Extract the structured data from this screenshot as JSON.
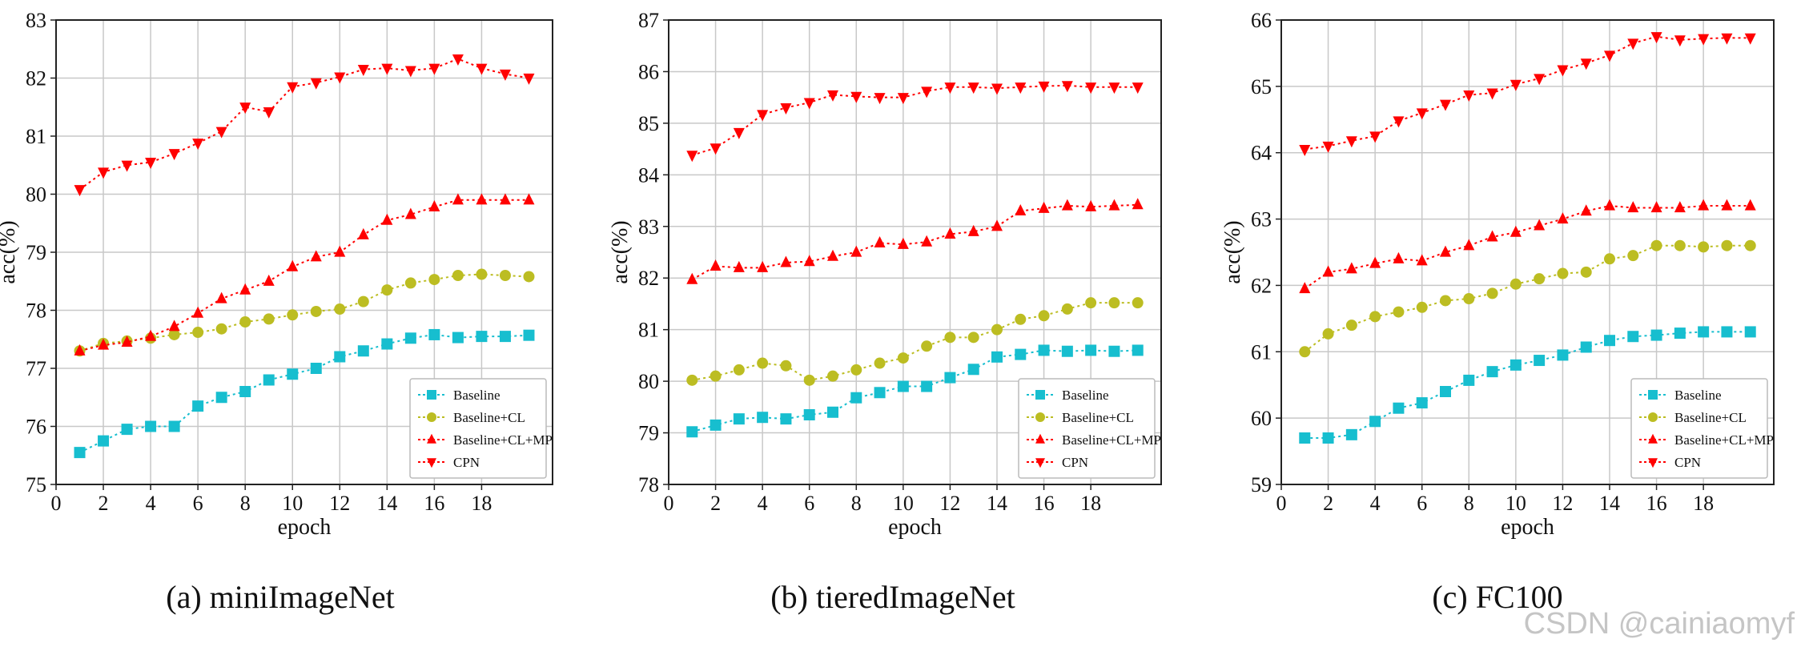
{
  "watermark": "CSDN @cainiaomyf",
  "chart_data": [
    {
      "type": "line",
      "caption": "(a) miniImageNet",
      "xlabel": "epoch",
      "ylabel": "acc(%)",
      "xlim": [
        0,
        21
      ],
      "ylim": [
        75,
        83
      ],
      "xticks": [
        0,
        2,
        4,
        6,
        8,
        10,
        12,
        14,
        16,
        18
      ],
      "yticks": [
        75,
        76,
        77,
        78,
        79,
        80,
        81,
        82,
        83
      ],
      "grid": true,
      "legend_position": "lower-right",
      "x": [
        1,
        2,
        3,
        4,
        5,
        6,
        7,
        8,
        9,
        10,
        11,
        12,
        13,
        14,
        15,
        16,
        17,
        18,
        19,
        20
      ],
      "series": [
        {
          "name": "Baseline",
          "color": "#17becf",
          "marker": "square",
          "values": [
            75.55,
            75.75,
            75.95,
            76.0,
            76.0,
            76.35,
            76.5,
            76.6,
            76.8,
            76.9,
            77.0,
            77.2,
            77.3,
            77.42,
            77.52,
            77.58,
            77.53,
            77.55,
            77.55,
            77.57
          ]
        },
        {
          "name": "Baseline+CL",
          "color": "#bcbd22",
          "marker": "circle",
          "values": [
            77.3,
            77.43,
            77.47,
            77.52,
            77.58,
            77.62,
            77.68,
            77.8,
            77.85,
            77.92,
            77.98,
            78.02,
            78.15,
            78.35,
            78.47,
            78.53,
            78.6,
            78.62,
            78.6,
            78.58
          ]
        },
        {
          "name": "Baseline+CL+MP",
          "color": "#ff0000",
          "marker": "triangle-up",
          "values": [
            77.3,
            77.4,
            77.45,
            77.55,
            77.72,
            77.95,
            78.2,
            78.35,
            78.5,
            78.75,
            78.92,
            79.0,
            79.3,
            79.55,
            79.65,
            79.78,
            79.9,
            79.9,
            79.9,
            79.9
          ]
        },
        {
          "name": "CPN",
          "color": "#ff0000",
          "marker": "triangle-down",
          "values": [
            80.08,
            80.38,
            80.5,
            80.55,
            80.7,
            80.88,
            81.08,
            81.5,
            81.42,
            81.85,
            81.92,
            82.02,
            82.15,
            82.17,
            82.13,
            82.17,
            82.33,
            82.17,
            82.07,
            82.0
          ]
        }
      ]
    },
    {
      "type": "line",
      "caption": "(b) tieredImageNet",
      "xlabel": "epoch",
      "ylabel": "acc(%)",
      "xlim": [
        0,
        21
      ],
      "ylim": [
        78,
        87
      ],
      "xticks": [
        0,
        2,
        4,
        6,
        8,
        10,
        12,
        14,
        16,
        18
      ],
      "yticks": [
        78,
        79,
        80,
        81,
        82,
        83,
        84,
        85,
        86,
        87
      ],
      "grid": true,
      "legend_position": "lower-right",
      "x": [
        1,
        2,
        3,
        4,
        5,
        6,
        7,
        8,
        9,
        10,
        11,
        12,
        13,
        14,
        15,
        16,
        17,
        18,
        19,
        20
      ],
      "series": [
        {
          "name": "Baseline",
          "color": "#17becf",
          "marker": "square",
          "values": [
            79.02,
            79.15,
            79.27,
            79.3,
            79.27,
            79.35,
            79.4,
            79.68,
            79.78,
            79.9,
            79.9,
            80.07,
            80.23,
            80.47,
            80.52,
            80.6,
            80.58,
            80.6,
            80.58,
            80.6
          ]
        },
        {
          "name": "Baseline+CL",
          "color": "#bcbd22",
          "marker": "circle",
          "values": [
            80.02,
            80.1,
            80.22,
            80.35,
            80.3,
            80.02,
            80.1,
            80.22,
            80.35,
            80.45,
            80.68,
            80.85,
            80.85,
            81.0,
            81.2,
            81.27,
            81.4,
            81.52,
            81.52,
            81.52
          ]
        },
        {
          "name": "Baseline+CL+MP",
          "color": "#ff0000",
          "marker": "triangle-up",
          "values": [
            81.97,
            82.23,
            82.2,
            82.2,
            82.3,
            82.32,
            82.42,
            82.5,
            82.68,
            82.65,
            82.7,
            82.85,
            82.9,
            83.0,
            83.3,
            83.35,
            83.4,
            83.38,
            83.4,
            83.42
          ]
        },
        {
          "name": "CPN",
          "color": "#ff0000",
          "marker": "triangle-down",
          "values": [
            84.38,
            84.52,
            84.82,
            85.17,
            85.3,
            85.4,
            85.55,
            85.52,
            85.5,
            85.5,
            85.62,
            85.7,
            85.7,
            85.68,
            85.7,
            85.72,
            85.73,
            85.7,
            85.7,
            85.7
          ]
        }
      ]
    },
    {
      "type": "line",
      "caption": "(c) FC100",
      "xlabel": "epoch",
      "ylabel": "acc(%)",
      "xlim": [
        0,
        21
      ],
      "ylim": [
        59,
        66
      ],
      "xticks": [
        0,
        2,
        4,
        6,
        8,
        10,
        12,
        14,
        16,
        18
      ],
      "yticks": [
        59,
        60,
        61,
        62,
        63,
        64,
        65,
        66
      ],
      "grid": true,
      "legend_position": "lower-right",
      "x": [
        1,
        2,
        3,
        4,
        5,
        6,
        7,
        8,
        9,
        10,
        11,
        12,
        13,
        14,
        15,
        16,
        17,
        18,
        19,
        20
      ],
      "series": [
        {
          "name": "Baseline",
          "color": "#17becf",
          "marker": "square",
          "values": [
            59.7,
            59.7,
            59.75,
            59.95,
            60.15,
            60.23,
            60.4,
            60.57,
            60.7,
            60.8,
            60.87,
            60.95,
            61.07,
            61.17,
            61.23,
            61.25,
            61.28,
            61.3,
            61.3,
            61.3
          ]
        },
        {
          "name": "Baseline+CL",
          "color": "#bcbd22",
          "marker": "circle",
          "values": [
            61.0,
            61.27,
            61.4,
            61.53,
            61.6,
            61.67,
            61.77,
            61.8,
            61.88,
            62.02,
            62.1,
            62.18,
            62.2,
            62.4,
            62.45,
            62.6,
            62.6,
            62.58,
            62.6,
            62.6
          ]
        },
        {
          "name": "Baseline+CL+MP",
          "color": "#ff0000",
          "marker": "triangle-up",
          "values": [
            61.95,
            62.2,
            62.25,
            62.33,
            62.4,
            62.37,
            62.5,
            62.6,
            62.73,
            62.8,
            62.9,
            63.0,
            63.12,
            63.2,
            63.17,
            63.17,
            63.17,
            63.2,
            63.2,
            63.2
          ]
        },
        {
          "name": "CPN",
          "color": "#ff0000",
          "marker": "triangle-down",
          "values": [
            64.05,
            64.1,
            64.18,
            64.25,
            64.48,
            64.6,
            64.73,
            64.87,
            64.9,
            65.03,
            65.12,
            65.25,
            65.35,
            65.47,
            65.65,
            65.75,
            65.7,
            65.72,
            65.73,
            65.73
          ]
        }
      ]
    }
  ]
}
